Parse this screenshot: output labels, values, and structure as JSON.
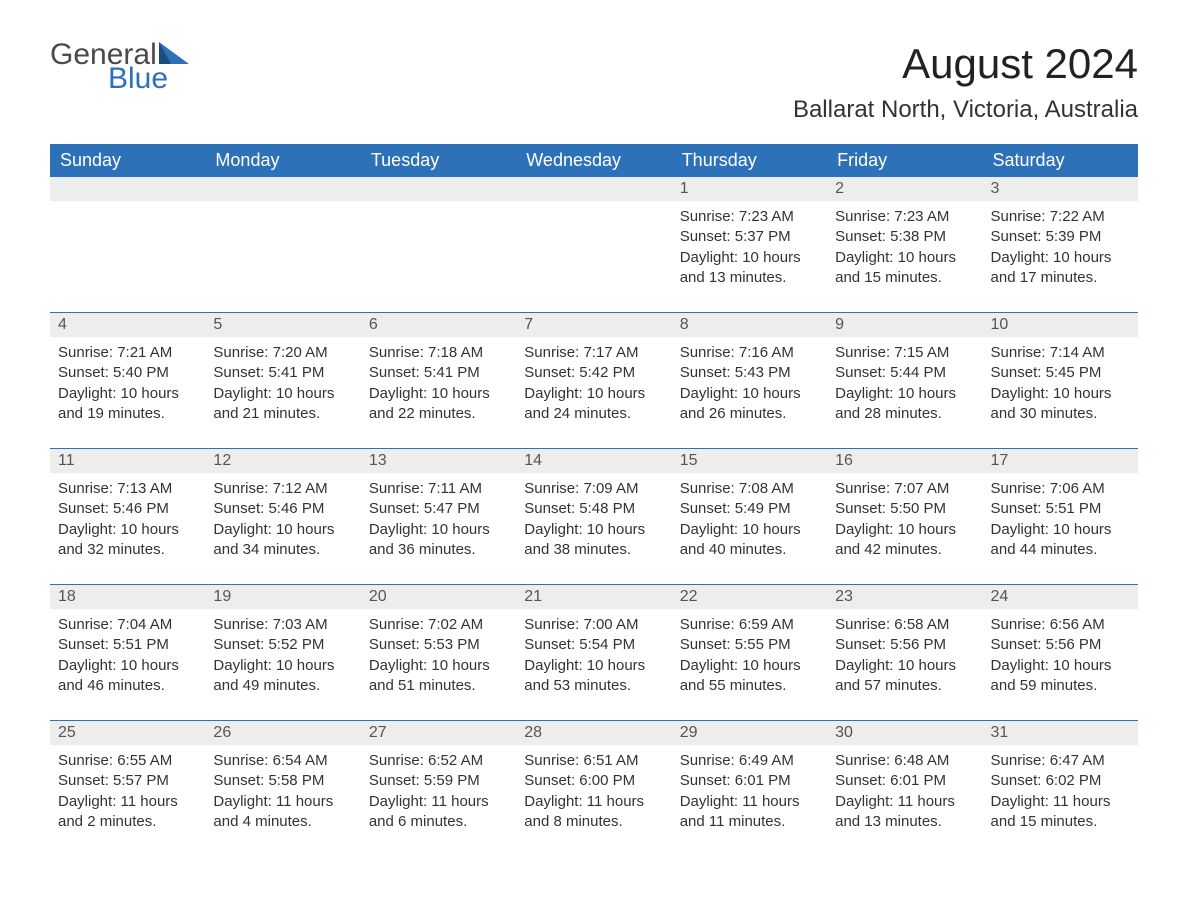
{
  "brand": {
    "name1": "General",
    "name2": "Blue",
    "accent_color": "#2d71b8"
  },
  "title": "August 2024",
  "location": "Ballarat North, Victoria, Australia",
  "colors": {
    "header_bg": "#2d71b8",
    "header_text": "#ffffff",
    "daynum_bg": "#ededed",
    "row_border": "#2d71b8",
    "body_text": "#333333",
    "page_bg": "#ffffff"
  },
  "day_headers": [
    "Sunday",
    "Monday",
    "Tuesday",
    "Wednesday",
    "Thursday",
    "Friday",
    "Saturday"
  ],
  "weeks": [
    [
      null,
      null,
      null,
      null,
      {
        "n": "1",
        "sunrise": "Sunrise: 7:23 AM",
        "sunset": "Sunset: 5:37 PM",
        "daylight": "Daylight: 10 hours and 13 minutes."
      },
      {
        "n": "2",
        "sunrise": "Sunrise: 7:23 AM",
        "sunset": "Sunset: 5:38 PM",
        "daylight": "Daylight: 10 hours and 15 minutes."
      },
      {
        "n": "3",
        "sunrise": "Sunrise: 7:22 AM",
        "sunset": "Sunset: 5:39 PM",
        "daylight": "Daylight: 10 hours and 17 minutes."
      }
    ],
    [
      {
        "n": "4",
        "sunrise": "Sunrise: 7:21 AM",
        "sunset": "Sunset: 5:40 PM",
        "daylight": "Daylight: 10 hours and 19 minutes."
      },
      {
        "n": "5",
        "sunrise": "Sunrise: 7:20 AM",
        "sunset": "Sunset: 5:41 PM",
        "daylight": "Daylight: 10 hours and 21 minutes."
      },
      {
        "n": "6",
        "sunrise": "Sunrise: 7:18 AM",
        "sunset": "Sunset: 5:41 PM",
        "daylight": "Daylight: 10 hours and 22 minutes."
      },
      {
        "n": "7",
        "sunrise": "Sunrise: 7:17 AM",
        "sunset": "Sunset: 5:42 PM",
        "daylight": "Daylight: 10 hours and 24 minutes."
      },
      {
        "n": "8",
        "sunrise": "Sunrise: 7:16 AM",
        "sunset": "Sunset: 5:43 PM",
        "daylight": "Daylight: 10 hours and 26 minutes."
      },
      {
        "n": "9",
        "sunrise": "Sunrise: 7:15 AM",
        "sunset": "Sunset: 5:44 PM",
        "daylight": "Daylight: 10 hours and 28 minutes."
      },
      {
        "n": "10",
        "sunrise": "Sunrise: 7:14 AM",
        "sunset": "Sunset: 5:45 PM",
        "daylight": "Daylight: 10 hours and 30 minutes."
      }
    ],
    [
      {
        "n": "11",
        "sunrise": "Sunrise: 7:13 AM",
        "sunset": "Sunset: 5:46 PM",
        "daylight": "Daylight: 10 hours and 32 minutes."
      },
      {
        "n": "12",
        "sunrise": "Sunrise: 7:12 AM",
        "sunset": "Sunset: 5:46 PM",
        "daylight": "Daylight: 10 hours and 34 minutes."
      },
      {
        "n": "13",
        "sunrise": "Sunrise: 7:11 AM",
        "sunset": "Sunset: 5:47 PM",
        "daylight": "Daylight: 10 hours and 36 minutes."
      },
      {
        "n": "14",
        "sunrise": "Sunrise: 7:09 AM",
        "sunset": "Sunset: 5:48 PM",
        "daylight": "Daylight: 10 hours and 38 minutes."
      },
      {
        "n": "15",
        "sunrise": "Sunrise: 7:08 AM",
        "sunset": "Sunset: 5:49 PM",
        "daylight": "Daylight: 10 hours and 40 minutes."
      },
      {
        "n": "16",
        "sunrise": "Sunrise: 7:07 AM",
        "sunset": "Sunset: 5:50 PM",
        "daylight": "Daylight: 10 hours and 42 minutes."
      },
      {
        "n": "17",
        "sunrise": "Sunrise: 7:06 AM",
        "sunset": "Sunset: 5:51 PM",
        "daylight": "Daylight: 10 hours and 44 minutes."
      }
    ],
    [
      {
        "n": "18",
        "sunrise": "Sunrise: 7:04 AM",
        "sunset": "Sunset: 5:51 PM",
        "daylight": "Daylight: 10 hours and 46 minutes."
      },
      {
        "n": "19",
        "sunrise": "Sunrise: 7:03 AM",
        "sunset": "Sunset: 5:52 PM",
        "daylight": "Daylight: 10 hours and 49 minutes."
      },
      {
        "n": "20",
        "sunrise": "Sunrise: 7:02 AM",
        "sunset": "Sunset: 5:53 PM",
        "daylight": "Daylight: 10 hours and 51 minutes."
      },
      {
        "n": "21",
        "sunrise": "Sunrise: 7:00 AM",
        "sunset": "Sunset: 5:54 PM",
        "daylight": "Daylight: 10 hours and 53 minutes."
      },
      {
        "n": "22",
        "sunrise": "Sunrise: 6:59 AM",
        "sunset": "Sunset: 5:55 PM",
        "daylight": "Daylight: 10 hours and 55 minutes."
      },
      {
        "n": "23",
        "sunrise": "Sunrise: 6:58 AM",
        "sunset": "Sunset: 5:56 PM",
        "daylight": "Daylight: 10 hours and 57 minutes."
      },
      {
        "n": "24",
        "sunrise": "Sunrise: 6:56 AM",
        "sunset": "Sunset: 5:56 PM",
        "daylight": "Daylight: 10 hours and 59 minutes."
      }
    ],
    [
      {
        "n": "25",
        "sunrise": "Sunrise: 6:55 AM",
        "sunset": "Sunset: 5:57 PM",
        "daylight": "Daylight: 11 hours and 2 minutes."
      },
      {
        "n": "26",
        "sunrise": "Sunrise: 6:54 AM",
        "sunset": "Sunset: 5:58 PM",
        "daylight": "Daylight: 11 hours and 4 minutes."
      },
      {
        "n": "27",
        "sunrise": "Sunrise: 6:52 AM",
        "sunset": "Sunset: 5:59 PM",
        "daylight": "Daylight: 11 hours and 6 minutes."
      },
      {
        "n": "28",
        "sunrise": "Sunrise: 6:51 AM",
        "sunset": "Sunset: 6:00 PM",
        "daylight": "Daylight: 11 hours and 8 minutes."
      },
      {
        "n": "29",
        "sunrise": "Sunrise: 6:49 AM",
        "sunset": "Sunset: 6:01 PM",
        "daylight": "Daylight: 11 hours and 11 minutes."
      },
      {
        "n": "30",
        "sunrise": "Sunrise: 6:48 AM",
        "sunset": "Sunset: 6:01 PM",
        "daylight": "Daylight: 11 hours and 13 minutes."
      },
      {
        "n": "31",
        "sunrise": "Sunrise: 6:47 AM",
        "sunset": "Sunset: 6:02 PM",
        "daylight": "Daylight: 11 hours and 15 minutes."
      }
    ]
  ]
}
